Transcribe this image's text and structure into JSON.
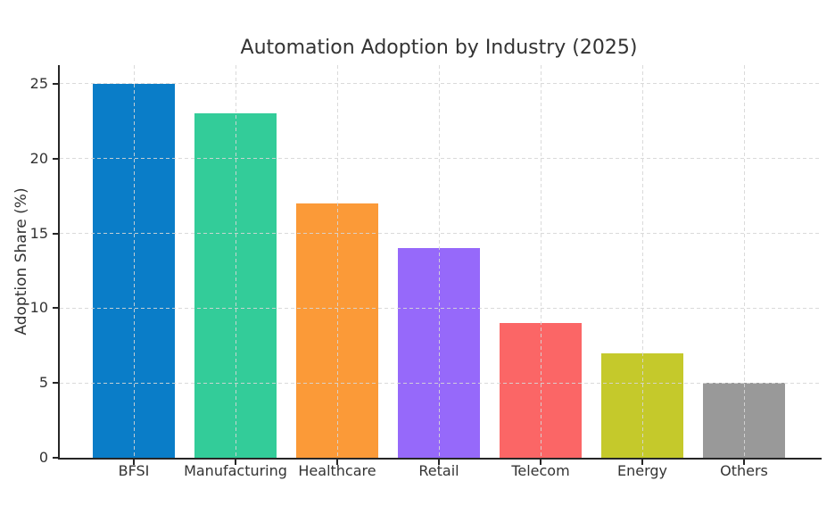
{
  "chart_data": {
    "type": "bar",
    "title": "Automation Adoption by Industry (2025)",
    "xlabel": "",
    "ylabel": "Adoption Share (%)",
    "categories": [
      "BFSI",
      "Manufacturing",
      "Healthcare",
      "Retail",
      "Telecom",
      "Energy",
      "Others"
    ],
    "values": [
      25,
      23,
      17,
      14,
      9,
      7,
      5
    ],
    "bar_colors": [
      "#0a7dc8",
      "#33cc99",
      "#fb9a38",
      "#9669fa",
      "#fb6666",
      "#c5c92b",
      "#999999"
    ],
    "yticks": [
      0,
      5,
      10,
      15,
      20,
      25
    ],
    "ylim": [
      0,
      26.25
    ],
    "grid": {
      "visible": true,
      "style": "dashed",
      "axes": "both",
      "above_bars": true
    },
    "legend_position": "none",
    "background_color": "#ffffff",
    "axis_color": "#262626",
    "text_color": "#333333",
    "grid_color": "#d6d6d6"
  }
}
